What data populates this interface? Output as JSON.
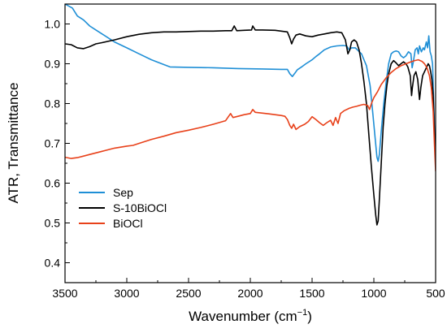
{
  "chart_data": {
    "type": "line",
    "xlabel": "Wavenumber (cm",
    "xlabel_sup": "−1",
    "xlabel_close": ")",
    "ylabel": "ATR, Transmittance",
    "xlim": [
      3500,
      500
    ],
    "x_reversed": true,
    "ylim": [
      0.35,
      1.05
    ],
    "x_ticks": [
      "3500",
      "3000",
      "2500",
      "2000",
      "1500",
      "1000",
      "500"
    ],
    "y_ticks": [
      "0.4",
      "0.5",
      "0.6",
      "0.7",
      "0.8",
      "0.9",
      "1.0"
    ],
    "grid": false,
    "legend_position": "bottom-left",
    "series": [
      {
        "name": "Sep",
        "color": "#1f8fd6",
        "points": [
          [
            3500,
            1.05
          ],
          [
            3440,
            1.04
          ],
          [
            3400,
            1.02
          ],
          [
            3350,
            1.01
          ],
          [
            3300,
            0.995
          ],
          [
            3250,
            0.985
          ],
          [
            3200,
            0.975
          ],
          [
            3100,
            0.955
          ],
          [
            3000,
            0.94
          ],
          [
            2900,
            0.925
          ],
          [
            2800,
            0.91
          ],
          [
            2700,
            0.898
          ],
          [
            2650,
            0.892
          ],
          [
            2500,
            0.891
          ],
          [
            2300,
            0.89
          ],
          [
            2100,
            0.888
          ],
          [
            1900,
            0.887
          ],
          [
            1750,
            0.886
          ],
          [
            1700,
            0.886
          ],
          [
            1680,
            0.875
          ],
          [
            1660,
            0.868
          ],
          [
            1640,
            0.876
          ],
          [
            1620,
            0.885
          ],
          [
            1580,
            0.893
          ],
          [
            1550,
            0.9
          ],
          [
            1500,
            0.91
          ],
          [
            1470,
            0.918
          ],
          [
            1440,
            0.925
          ],
          [
            1400,
            0.935
          ],
          [
            1350,
            0.942
          ],
          [
            1300,
            0.945
          ],
          [
            1250,
            0.946
          ],
          [
            1220,
            0.945
          ],
          [
            1200,
            0.935
          ],
          [
            1180,
            0.94
          ],
          [
            1150,
            0.94
          ],
          [
            1100,
            0.925
          ],
          [
            1060,
            0.895
          ],
          [
            1030,
            0.845
          ],
          [
            1010,
            0.78
          ],
          [
            990,
            0.715
          ],
          [
            975,
            0.665
          ],
          [
            965,
            0.655
          ],
          [
            955,
            0.672
          ],
          [
            940,
            0.73
          ],
          [
            920,
            0.8
          ],
          [
            900,
            0.855
          ],
          [
            880,
            0.9
          ],
          [
            860,
            0.925
          ],
          [
            840,
            0.93
          ],
          [
            820,
            0.932
          ],
          [
            800,
            0.93
          ],
          [
            780,
            0.92
          ],
          [
            760,
            0.915
          ],
          [
            740,
            0.92
          ],
          [
            720,
            0.93
          ],
          [
            700,
            0.925
          ],
          [
            690,
            0.89
          ],
          [
            680,
            0.905
          ],
          [
            665,
            0.935
          ],
          [
            650,
            0.94
          ],
          [
            640,
            0.925
          ],
          [
            630,
            0.945
          ],
          [
            615,
            0.93
          ],
          [
            600,
            0.94
          ],
          [
            590,
            0.935
          ],
          [
            575,
            0.955
          ],
          [
            565,
            0.94
          ],
          [
            555,
            0.97
          ],
          [
            545,
            0.93
          ],
          [
            535,
            0.92
          ],
          [
            525,
            0.9
          ],
          [
            515,
            0.8
          ],
          [
            505,
            0.7
          ],
          [
            500,
            0.68
          ]
        ]
      },
      {
        "name": "S-10BiOCl",
        "color": "#000000",
        "points": [
          [
            3500,
            0.95
          ],
          [
            3450,
            0.948
          ],
          [
            3400,
            0.94
          ],
          [
            3350,
            0.938
          ],
          [
            3300,
            0.943
          ],
          [
            3250,
            0.95
          ],
          [
            3200,
            0.953
          ],
          [
            3100,
            0.96
          ],
          [
            3000,
            0.968
          ],
          [
            2900,
            0.974
          ],
          [
            2800,
            0.978
          ],
          [
            2700,
            0.98
          ],
          [
            2600,
            0.98
          ],
          [
            2500,
            0.981
          ],
          [
            2400,
            0.982
          ],
          [
            2300,
            0.982
          ],
          [
            2200,
            0.983
          ],
          [
            2150,
            0.983
          ],
          [
            2130,
            0.995
          ],
          [
            2110,
            0.983
          ],
          [
            2050,
            0.984
          ],
          [
            1990,
            0.985
          ],
          [
            1980,
            0.995
          ],
          [
            1960,
            0.985
          ],
          [
            1900,
            0.985
          ],
          [
            1800,
            0.984
          ],
          [
            1750,
            0.982
          ],
          [
            1700,
            0.98
          ],
          [
            1680,
            0.965
          ],
          [
            1665,
            0.95
          ],
          [
            1650,
            0.962
          ],
          [
            1630,
            0.972
          ],
          [
            1600,
            0.975
          ],
          [
            1550,
            0.97
          ],
          [
            1500,
            0.968
          ],
          [
            1450,
            0.972
          ],
          [
            1400,
            0.975
          ],
          [
            1350,
            0.978
          ],
          [
            1300,
            0.98
          ],
          [
            1260,
            0.978
          ],
          [
            1230,
            0.96
          ],
          [
            1210,
            0.925
          ],
          [
            1195,
            0.935
          ],
          [
            1180,
            0.955
          ],
          [
            1160,
            0.96
          ],
          [
            1140,
            0.955
          ],
          [
            1120,
            0.935
          ],
          [
            1100,
            0.9
          ],
          [
            1080,
            0.855
          ],
          [
            1060,
            0.8
          ],
          [
            1040,
            0.72
          ],
          [
            1020,
            0.64
          ],
          [
            1000,
            0.57
          ],
          [
            985,
            0.52
          ],
          [
            975,
            0.495
          ],
          [
            965,
            0.505
          ],
          [
            955,
            0.56
          ],
          [
            940,
            0.65
          ],
          [
            925,
            0.74
          ],
          [
            910,
            0.8
          ],
          [
            895,
            0.845
          ],
          [
            880,
            0.875
          ],
          [
            860,
            0.9
          ],
          [
            840,
            0.908
          ],
          [
            820,
            0.902
          ],
          [
            800,
            0.895
          ],
          [
            780,
            0.9
          ],
          [
            760,
            0.905
          ],
          [
            740,
            0.9
          ],
          [
            725,
            0.892
          ],
          [
            705,
            0.87
          ],
          [
            695,
            0.82
          ],
          [
            688,
            0.84
          ],
          [
            675,
            0.87
          ],
          [
            660,
            0.88
          ],
          [
            645,
            0.86
          ],
          [
            630,
            0.81
          ],
          [
            620,
            0.84
          ],
          [
            605,
            0.87
          ],
          [
            590,
            0.88
          ],
          [
            575,
            0.89
          ],
          [
            560,
            0.9
          ],
          [
            550,
            0.895
          ],
          [
            540,
            0.88
          ],
          [
            530,
            0.86
          ],
          [
            520,
            0.82
          ],
          [
            510,
            0.73
          ],
          [
            500,
            0.67
          ]
        ]
      },
      {
        "name": "BiOCl",
        "color": "#e8411a",
        "points": [
          [
            3500,
            0.665
          ],
          [
            3450,
            0.662
          ],
          [
            3400,
            0.664
          ],
          [
            3350,
            0.668
          ],
          [
            3300,
            0.672
          ],
          [
            3200,
            0.68
          ],
          [
            3100,
            0.688
          ],
          [
            3000,
            0.693
          ],
          [
            2950,
            0.695
          ],
          [
            2900,
            0.7
          ],
          [
            2800,
            0.71
          ],
          [
            2700,
            0.718
          ],
          [
            2600,
            0.727
          ],
          [
            2500,
            0.733
          ],
          [
            2400,
            0.74
          ],
          [
            2300,
            0.748
          ],
          [
            2200,
            0.757
          ],
          [
            2160,
            0.775
          ],
          [
            2140,
            0.765
          ],
          [
            2100,
            0.768
          ],
          [
            2050,
            0.772
          ],
          [
            2000,
            0.775
          ],
          [
            1980,
            0.785
          ],
          [
            1960,
            0.778
          ],
          [
            1900,
            0.776
          ],
          [
            1850,
            0.774
          ],
          [
            1800,
            0.772
          ],
          [
            1750,
            0.77
          ],
          [
            1720,
            0.768
          ],
          [
            1700,
            0.76
          ],
          [
            1680,
            0.745
          ],
          [
            1665,
            0.738
          ],
          [
            1650,
            0.748
          ],
          [
            1630,
            0.735
          ],
          [
            1600,
            0.742
          ],
          [
            1560,
            0.748
          ],
          [
            1530,
            0.755
          ],
          [
            1500,
            0.767
          ],
          [
            1470,
            0.76
          ],
          [
            1440,
            0.752
          ],
          [
            1410,
            0.745
          ],
          [
            1380,
            0.752
          ],
          [
            1350,
            0.758
          ],
          [
            1330,
            0.745
          ],
          [
            1310,
            0.765
          ],
          [
            1290,
            0.75
          ],
          [
            1270,
            0.775
          ],
          [
            1240,
            0.782
          ],
          [
            1200,
            0.788
          ],
          [
            1170,
            0.791
          ],
          [
            1140,
            0.793
          ],
          [
            1110,
            0.796
          ],
          [
            1080,
            0.798
          ],
          [
            1050,
            0.795
          ],
          [
            1035,
            0.785
          ],
          [
            1020,
            0.8
          ],
          [
            1000,
            0.815
          ],
          [
            970,
            0.83
          ],
          [
            940,
            0.848
          ],
          [
            900,
            0.865
          ],
          [
            860,
            0.878
          ],
          [
            820,
            0.888
          ],
          [
            780,
            0.895
          ],
          [
            740,
            0.9
          ],
          [
            700,
            0.905
          ],
          [
            670,
            0.908
          ],
          [
            640,
            0.91
          ],
          [
            610,
            0.906
          ],
          [
            590,
            0.9
          ],
          [
            570,
            0.89
          ],
          [
            550,
            0.87
          ],
          [
            535,
            0.84
          ],
          [
            520,
            0.78
          ],
          [
            510,
            0.7
          ],
          [
            500,
            0.63
          ]
        ]
      }
    ]
  }
}
